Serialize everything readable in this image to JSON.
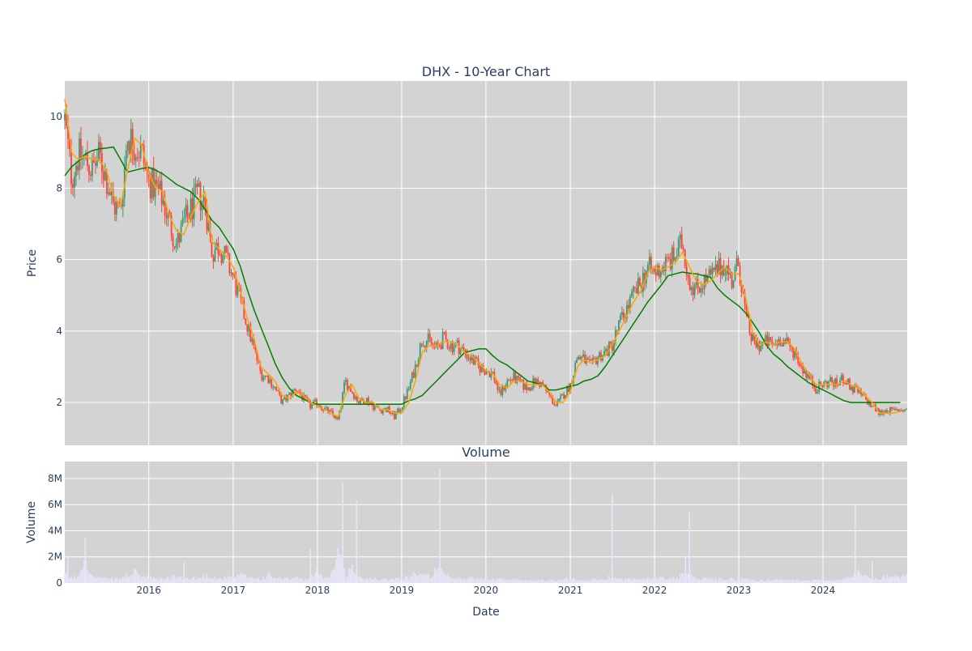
{
  "chart_data": [
    {
      "type": "candlestick",
      "title": "DHX - 10-Year Chart",
      "ylabel": "Price",
      "ylim": [
        0.8,
        11.0
      ],
      "yticks": [
        2,
        4,
        6,
        8,
        10
      ],
      "grid": true,
      "colors": {
        "up": "#3d9970",
        "down": "#ff4136",
        "ma_short": "#ffa500",
        "ma_long": "#008000",
        "plot_bg": "#d3d3d3"
      },
      "series": [
        {
          "kind": "price",
          "x": [
            "2015-01-02",
            "2015-02-01",
            "2015-03-01",
            "2015-04-01",
            "2015-05-01",
            "2015-06-01",
            "2015-07-01",
            "2015-08-01",
            "2015-09-01",
            "2015-10-01",
            "2015-11-01",
            "2015-12-01",
            "2016-01-01",
            "2016-02-01",
            "2016-03-01",
            "2016-04-01",
            "2016-05-01",
            "2016-06-01",
            "2016-07-01",
            "2016-08-01",
            "2016-09-01",
            "2016-10-01",
            "2016-11-01",
            "2016-12-01",
            "2017-01-01",
            "2017-02-01",
            "2017-03-01",
            "2017-04-01",
            "2017-05-01",
            "2017-06-01",
            "2017-07-01",
            "2017-08-01",
            "2017-09-01",
            "2017-10-01",
            "2017-11-01",
            "2017-12-01",
            "2018-01-01",
            "2018-02-01",
            "2018-03-01",
            "2018-04-01",
            "2018-05-01",
            "2018-06-01",
            "2018-07-01",
            "2018-08-01",
            "2018-09-01",
            "2018-10-01",
            "2018-11-01",
            "2018-12-01",
            "2019-01-01",
            "2019-02-01",
            "2019-03-01",
            "2019-04-01",
            "2019-05-01",
            "2019-06-01",
            "2019-07-01",
            "2019-08-01",
            "2019-09-01",
            "2019-10-01",
            "2019-11-01",
            "2019-12-01",
            "2020-01-01",
            "2020-02-01",
            "2020-03-01",
            "2020-04-01",
            "2020-05-01",
            "2020-06-01",
            "2020-07-01",
            "2020-08-01",
            "2020-09-01",
            "2020-10-01",
            "2020-11-01",
            "2020-12-01",
            "2021-01-01",
            "2021-02-01",
            "2021-03-01",
            "2021-04-01",
            "2021-05-01",
            "2021-06-01",
            "2021-07-01",
            "2021-08-01",
            "2021-09-01",
            "2021-10-01",
            "2021-11-01",
            "2021-12-01",
            "2022-01-01",
            "2022-02-01",
            "2022-03-01",
            "2022-04-01",
            "2022-05-01",
            "2022-06-01",
            "2022-07-01",
            "2022-08-01",
            "2022-09-01",
            "2022-10-01",
            "2022-11-01",
            "2022-12-01",
            "2023-01-01",
            "2023-02-01",
            "2023-03-01",
            "2023-04-01",
            "2023-05-01",
            "2023-06-01",
            "2023-07-01",
            "2023-08-01",
            "2023-09-01",
            "2023-10-01",
            "2023-11-01",
            "2023-12-01",
            "2024-01-01",
            "2024-02-01",
            "2024-03-01",
            "2024-04-01",
            "2024-05-01",
            "2024-06-01",
            "2024-07-01",
            "2024-08-01",
            "2024-09-01",
            "2024-10-01",
            "2024-11-01",
            "2024-12-01"
          ],
          "close": [
            9.9,
            8.3,
            8.9,
            8.8,
            8.5,
            8.9,
            8.3,
            7.5,
            7.4,
            9.5,
            9.2,
            9.0,
            8.2,
            8.0,
            7.7,
            7.0,
            6.4,
            7.0,
            7.4,
            7.8,
            7.6,
            6.2,
            6.4,
            6.0,
            5.5,
            4.8,
            4.2,
            3.5,
            2.8,
            2.7,
            2.4,
            2.0,
            2.2,
            2.4,
            2.1,
            1.9,
            2.0,
            1.8,
            1.7,
            1.5,
            2.6,
            2.3,
            2.0,
            2.1,
            1.9,
            1.8,
            1.8,
            1.6,
            1.9,
            2.4,
            3.0,
            3.8,
            3.7,
            3.5,
            3.8,
            3.6,
            3.6,
            3.4,
            3.2,
            3.0,
            2.9,
            2.8,
            2.2,
            2.6,
            2.7,
            2.5,
            2.4,
            2.6,
            2.5,
            2.2,
            1.9,
            2.2,
            2.5,
            3.3,
            3.2,
            3.0,
            3.3,
            3.4,
            3.6,
            4.2,
            4.6,
            5.0,
            5.3,
            5.8,
            5.6,
            5.8,
            5.9,
            6.1,
            6.5,
            5.4,
            5.2,
            5.4,
            5.5,
            5.7,
            5.9,
            5.4,
            5.9,
            4.4,
            3.7,
            3.6,
            3.7,
            3.6,
            3.8,
            3.6,
            3.4,
            3.0,
            2.7,
            2.4,
            2.5,
            2.6,
            2.5,
            2.7,
            2.4,
            2.3,
            2.1,
            1.9,
            1.7,
            1.8,
            1.75,
            1.8
          ],
          "volume": [
            0.6,
            0.4,
            0.5,
            2.2,
            0.5,
            0.4,
            0.3,
            0.3,
            0.3,
            0.6,
            0.8,
            0.5,
            0.4,
            0.3,
            0.3,
            0.4,
            0.5,
            0.3,
            0.4,
            0.3,
            0.6,
            0.5,
            0.3,
            0.4,
            0.4,
            0.6,
            0.5,
            0.4,
            0.3,
            0.6,
            0.4,
            0.3,
            0.3,
            0.4,
            0.3,
            0.3,
            1.0,
            0.4,
            0.6,
            2.6,
            0.6,
            1.2,
            0.4,
            0.3,
            0.4,
            0.3,
            0.3,
            0.4,
            0.3,
            0.5,
            0.8,
            0.6,
            0.5,
            1.0,
            0.7,
            0.4,
            0.3,
            0.3,
            0.4,
            0.3,
            0.3,
            0.3,
            0.4,
            0.2,
            0.3,
            0.2,
            0.2,
            0.2,
            0.2,
            0.2,
            0.2,
            0.3,
            0.3,
            0.3,
            0.2,
            0.2,
            0.3,
            0.3,
            0.6,
            0.3,
            0.3,
            0.3,
            0.3,
            0.3,
            0.3,
            0.4,
            0.4,
            0.4,
            0.6,
            0.8,
            0.5,
            0.3,
            0.3,
            0.3,
            0.3,
            0.3,
            0.3,
            0.3,
            0.2,
            0.2,
            0.2,
            0.3,
            0.3,
            0.2,
            0.2,
            0.2,
            0.2,
            0.2,
            0.2,
            0.2,
            0.2,
            0.3,
            0.4,
            0.8,
            0.6,
            0.4,
            0.4,
            0.5,
            0.4,
            0.5
          ]
        },
        {
          "kind": "ma_short",
          "x": [
            "2015-01-02",
            "2015-02-01",
            "2015-03-01",
            "2015-04-01",
            "2015-05-01",
            "2015-06-01",
            "2015-07-01",
            "2015-08-01",
            "2015-09-01",
            "2015-10-01",
            "2015-11-01",
            "2015-12-01",
            "2016-01-01",
            "2016-02-01",
            "2016-03-01",
            "2016-04-01",
            "2016-05-01",
            "2016-06-01",
            "2016-07-01",
            "2016-08-01",
            "2016-09-01",
            "2016-10-01",
            "2016-11-01",
            "2016-12-01",
            "2017-01-01",
            "2017-02-01",
            "2017-03-01",
            "2017-04-01",
            "2017-05-01",
            "2017-06-01",
            "2017-07-01",
            "2017-08-01",
            "2017-09-01",
            "2017-10-01",
            "2017-11-01",
            "2017-12-01",
            "2018-01-01",
            "2018-02-01",
            "2018-03-01",
            "2018-04-01",
            "2018-05-01",
            "2018-06-01",
            "2018-07-01",
            "2018-08-01",
            "2018-09-01",
            "2018-10-01",
            "2018-11-01",
            "2018-12-01",
            "2019-01-01",
            "2019-02-01",
            "2019-03-01",
            "2019-04-01",
            "2019-05-01",
            "2019-06-01",
            "2019-07-01",
            "2019-08-01",
            "2019-09-01",
            "2019-10-01",
            "2019-11-01",
            "2019-12-01",
            "2020-01-01",
            "2020-02-01",
            "2020-03-01",
            "2020-04-01",
            "2020-05-01",
            "2020-06-01",
            "2020-07-01",
            "2020-08-01",
            "2020-09-01",
            "2020-10-01",
            "2020-11-01",
            "2020-12-01",
            "2021-01-01",
            "2021-02-01",
            "2021-03-01",
            "2021-04-01",
            "2021-05-01",
            "2021-06-01",
            "2021-07-01",
            "2021-08-01",
            "2021-09-01",
            "2021-10-01",
            "2021-11-01",
            "2021-12-01",
            "2022-01-01",
            "2022-02-01",
            "2022-03-01",
            "2022-04-01",
            "2022-05-01",
            "2022-06-01",
            "2022-07-01",
            "2022-08-01",
            "2022-09-01",
            "2022-10-01",
            "2022-11-01",
            "2022-12-01",
            "2023-01-01",
            "2023-02-01",
            "2023-03-01",
            "2023-04-01",
            "2023-05-01",
            "2023-06-01",
            "2023-07-01",
            "2023-08-01",
            "2023-09-01",
            "2023-10-01",
            "2023-11-01",
            "2023-12-01",
            "2024-01-01",
            "2024-02-01",
            "2024-03-01",
            "2024-04-01",
            "2024-05-01",
            "2024-06-01",
            "2024-07-01",
            "2024-08-01",
            "2024-09-01",
            "2024-10-01",
            "2024-11-01",
            "2024-12-01"
          ],
          "y": [
            10.5,
            9.0,
            8.8,
            8.9,
            8.8,
            8.8,
            8.5,
            7.8,
            7.5,
            8.5,
            9.4,
            9.2,
            8.4,
            8.0,
            7.9,
            7.2,
            6.8,
            6.7,
            7.2,
            7.6,
            7.9,
            6.5,
            6.3,
            6.1,
            5.8,
            5.1,
            4.4,
            3.8,
            3.0,
            2.8,
            2.6,
            2.2,
            2.1,
            2.3,
            2.2,
            2.0,
            1.9,
            1.8,
            1.7,
            1.6,
            2.2,
            2.5,
            2.1,
            2.0,
            2.0,
            1.8,
            1.8,
            1.7,
            1.7,
            2.0,
            2.6,
            3.4,
            3.6,
            3.6,
            3.7,
            3.7,
            3.6,
            3.4,
            3.3,
            3.1,
            2.9,
            2.8,
            2.5,
            2.4,
            2.6,
            2.6,
            2.5,
            2.5,
            2.5,
            2.3,
            2.0,
            2.0,
            2.3,
            3.0,
            3.2,
            3.1,
            3.2,
            3.3,
            3.6,
            4.0,
            4.4,
            4.8,
            5.1,
            5.6,
            5.8,
            5.7,
            5.8,
            5.9,
            6.2,
            5.8,
            5.4,
            5.3,
            5.4,
            5.6,
            5.8,
            5.6,
            5.6,
            4.9,
            4.0,
            3.6,
            3.7,
            3.6,
            3.7,
            3.7,
            3.5,
            3.1,
            2.8,
            2.5,
            2.5,
            2.5,
            2.5,
            2.6,
            2.5,
            2.4,
            2.2,
            2.0,
            1.7,
            1.7,
            1.7,
            1.75
          ]
        },
        {
          "kind": "ma_long",
          "x": [
            "2015-01-02",
            "2015-02-01",
            "2015-03-01",
            "2015-04-01",
            "2015-05-01",
            "2015-06-01",
            "2015-07-01",
            "2015-08-01",
            "2015-09-01",
            "2015-10-01",
            "2015-11-01",
            "2015-12-01",
            "2016-01-01",
            "2016-02-01",
            "2016-03-01",
            "2016-04-01",
            "2016-05-01",
            "2016-06-01",
            "2016-07-01",
            "2016-08-01",
            "2016-09-01",
            "2016-10-01",
            "2016-11-01",
            "2016-12-01",
            "2017-01-01",
            "2017-02-01",
            "2017-03-01",
            "2017-04-01",
            "2017-05-01",
            "2017-06-01",
            "2017-07-01",
            "2017-08-01",
            "2017-09-01",
            "2017-10-01",
            "2017-11-01",
            "2017-12-01",
            "2018-01-01",
            "2018-02-01",
            "2018-03-01",
            "2018-04-01",
            "2018-05-01",
            "2018-06-01",
            "2018-07-01",
            "2018-08-01",
            "2018-09-01",
            "2018-10-01",
            "2018-11-01",
            "2018-12-01",
            "2019-01-01",
            "2019-02-01",
            "2019-03-01",
            "2019-04-01",
            "2019-05-01",
            "2019-06-01",
            "2019-07-01",
            "2019-08-01",
            "2019-09-01",
            "2019-10-01",
            "2019-11-01",
            "2019-12-01",
            "2020-01-01",
            "2020-02-01",
            "2020-03-01",
            "2020-04-01",
            "2020-05-01",
            "2020-06-01",
            "2020-07-01",
            "2020-08-01",
            "2020-09-01",
            "2020-10-01",
            "2020-11-01",
            "2020-12-01",
            "2021-01-01",
            "2021-02-01",
            "2021-03-01",
            "2021-04-01",
            "2021-05-01",
            "2021-06-01",
            "2021-07-01",
            "2021-08-01",
            "2021-09-01",
            "2021-10-01",
            "2021-11-01",
            "2021-12-01",
            "2022-01-01",
            "2022-02-01",
            "2022-03-01",
            "2022-04-01",
            "2022-05-01",
            "2022-06-01",
            "2022-07-01",
            "2022-08-01",
            "2022-09-01",
            "2022-10-01",
            "2022-11-01",
            "2022-12-01",
            "2023-01-01",
            "2023-02-01",
            "2023-03-01",
            "2023-04-01",
            "2023-05-01",
            "2023-06-01",
            "2023-07-01",
            "2023-08-01",
            "2023-09-01",
            "2023-10-01",
            "2023-11-01",
            "2023-12-01",
            "2024-01-01",
            "2024-02-01",
            "2024-03-01",
            "2024-04-01",
            "2024-05-01",
            "2024-06-01",
            "2024-07-01",
            "2024-08-01",
            "2024-09-01",
            "2024-10-01",
            "2024-11-01",
            "2024-12-01"
          ],
          "y": [
            8.35,
            8.6,
            8.75,
            8.95,
            9.05,
            9.1,
            9.12,
            9.15,
            8.8,
            8.45,
            8.5,
            8.55,
            8.58,
            8.5,
            8.4,
            8.25,
            8.1,
            8.0,
            7.9,
            7.7,
            7.4,
            7.1,
            6.9,
            6.6,
            6.3,
            5.8,
            5.2,
            4.6,
            4.1,
            3.6,
            3.1,
            2.7,
            2.4,
            2.2,
            2.1,
            2.0,
            1.95,
            1.95,
            1.95,
            1.95,
            1.95,
            1.95,
            1.95,
            1.95,
            1.95,
            1.95,
            1.95,
            1.95,
            1.95,
            2.05,
            2.1,
            2.2,
            2.4,
            2.6,
            2.8,
            3.0,
            3.2,
            3.4,
            3.45,
            3.5,
            3.5,
            3.3,
            3.15,
            3.05,
            2.9,
            2.75,
            2.6,
            2.55,
            2.5,
            2.35,
            2.35,
            2.4,
            2.45,
            2.5,
            2.6,
            2.65,
            2.75,
            3.0,
            3.3,
            3.6,
            3.9,
            4.2,
            4.5,
            4.8,
            5.05,
            5.3,
            5.55,
            5.6,
            5.65,
            5.62,
            5.6,
            5.55,
            5.5,
            5.2,
            5.0,
            4.85,
            4.7,
            4.5,
            4.25,
            3.95,
            3.6,
            3.35,
            3.2,
            3.0,
            2.85,
            2.7,
            2.55,
            2.45,
            2.35,
            2.25,
            2.15,
            2.05,
            2.0,
            2.0,
            2.0,
            2.0,
            2.0,
            2.0,
            2.0,
            2.0
          ]
        }
      ],
      "xticks": [
        "2016",
        "2017",
        "2018",
        "2019",
        "2020",
        "2021",
        "2022",
        "2023",
        "2024"
      ]
    },
    {
      "type": "bar",
      "title": "Volume",
      "ylabel": "Volume",
      "xlabel": "Date",
      "ylim": [
        0,
        9.3
      ],
      "yticks": [
        0,
        2,
        4,
        6,
        8
      ],
      "ytick_labels": [
        "0",
        "2M",
        "4M",
        "6M",
        "8M"
      ],
      "grid": true,
      "colors": {
        "bar": "#e6e6fa",
        "plot_bg": "#d3d3d3"
      },
      "spikes": [
        {
          "x": "2015-01-15",
          "value": 2.1
        },
        {
          "x": "2015-04-01",
          "value": 3.5
        },
        {
          "x": "2016-06-01",
          "value": 1.6
        },
        {
          "x": "2017-12-01",
          "value": 2.6
        },
        {
          "x": "2018-04-20",
          "value": 7.7
        },
        {
          "x": "2018-06-20",
          "value": 6.3
        },
        {
          "x": "2019-06-15",
          "value": 8.8
        },
        {
          "x": "2021-07-01",
          "value": 6.8
        },
        {
          "x": "2022-06-01",
          "value": 5.4
        },
        {
          "x": "2022-05-15",
          "value": 2.0
        },
        {
          "x": "2024-05-20",
          "value": 6.0
        },
        {
          "x": "2024-08-01",
          "value": 1.7
        }
      ]
    }
  ]
}
